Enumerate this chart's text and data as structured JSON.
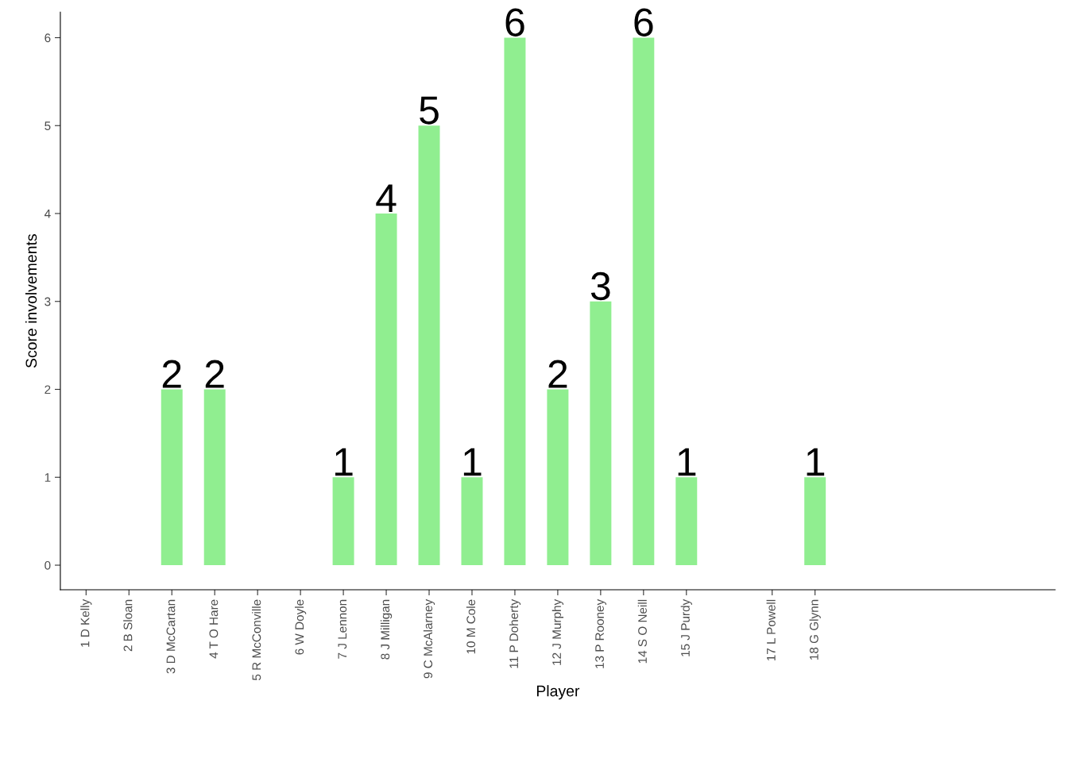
{
  "chart_data": {
    "type": "bar",
    "xlabel": "Player",
    "ylabel": "Score involvements",
    "categories": [
      "1 D Kelly",
      "2 B Sloan",
      "3 D McCartan",
      "4 T O Hare",
      "5 R McConville",
      "6 W Doyle",
      "7 J Lennon",
      "8 J Milligan",
      "9 C McAlarney",
      "10 M Cole",
      "11 P Doherty",
      "12 J Murphy",
      "13 P Rooney",
      "14 S O Neill",
      "15 J Purdy",
      null,
      "17 L Powell",
      "18 G Glynn",
      null,
      null,
      null,
      null,
      null
    ],
    "values": [
      null,
      null,
      2,
      2,
      null,
      null,
      1,
      4,
      5,
      1,
      6,
      2,
      3,
      6,
      1,
      null,
      null,
      1,
      null,
      null,
      null,
      null,
      null
    ],
    "color": "#90ee90",
    "ylim": [
      -0.28,
      6.29
    ],
    "yticks": [
      0,
      1,
      2,
      3,
      4,
      5,
      6
    ],
    "data_labels": true,
    "grid": false,
    "legend": false
  }
}
